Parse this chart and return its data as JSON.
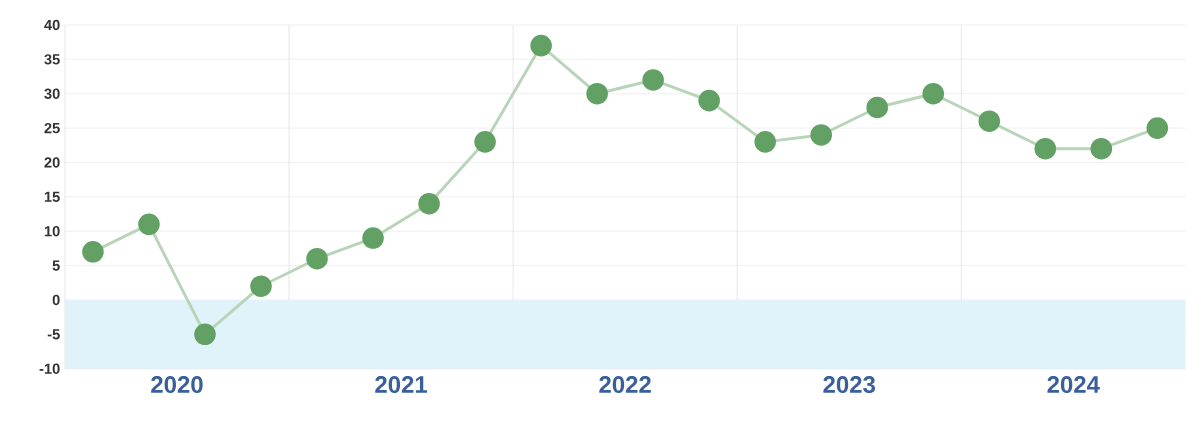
{
  "chart_data": {
    "type": "line",
    "x": [
      2020.125,
      2020.375,
      2020.625,
      2020.875,
      2021.125,
      2021.375,
      2021.625,
      2021.875,
      2022.125,
      2022.375,
      2022.625,
      2022.875,
      2023.125,
      2023.375,
      2023.625,
      2023.875,
      2024.125,
      2024.375,
      2024.625,
      2024.875
    ],
    "series": [
      {
        "color": "#62a064",
        "values": [
          7,
          11,
          -5,
          2,
          6,
          9,
          14,
          23,
          37,
          30,
          32,
          29,
          23,
          24,
          28,
          30,
          26,
          22,
          22,
          25
        ]
      }
    ],
    "xlim": [
      2020,
      2025
    ],
    "xticks": [
      {
        "value": 2020.5,
        "label": "2020"
      },
      {
        "value": 2021,
        "label": null
      },
      {
        "value": 2021.5,
        "label": "2021"
      },
      {
        "value": 2022,
        "label": null
      },
      {
        "value": 2022.5,
        "label": "2022"
      },
      {
        "value": 2023,
        "label": null
      },
      {
        "value": 2023.5,
        "label": "2023"
      },
      {
        "value": 2024,
        "label": null
      },
      {
        "value": 2024.5,
        "label": "2024"
      }
    ],
    "ylim": [
      -10,
      40
    ],
    "yticks": [
      -10,
      -5,
      0,
      5,
      10,
      15,
      20,
      25,
      30,
      35,
      40
    ],
    "bands": [
      {
        "axis": "y",
        "from": -10,
        "to": 0,
        "color": "#e1f3fa"
      }
    ],
    "grid": true,
    "marker": "circle",
    "line_style": "solid"
  }
}
